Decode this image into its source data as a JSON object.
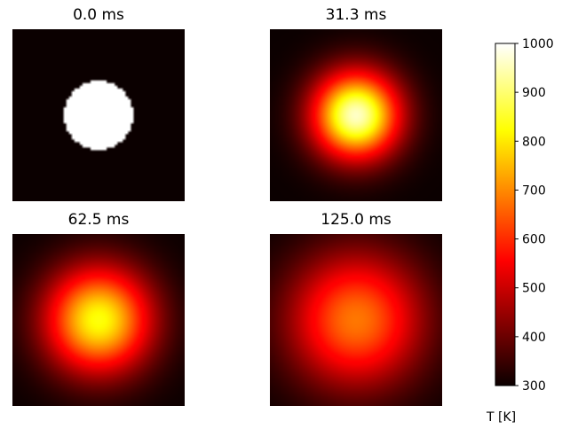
{
  "chart_data": {
    "type": "heatmap",
    "colormap": "hot",
    "color_range": [
      300,
      1000
    ],
    "colorbar": {
      "label": "T [K]",
      "ticks": [
        300,
        400,
        500,
        600,
        700,
        800,
        900,
        1000
      ]
    },
    "panels": [
      {
        "title": "0.0 ms",
        "peak_temperature": 1000,
        "background_temperature": 300,
        "radius_fraction": 0.2,
        "profile": "disk"
      },
      {
        "title": "31.3 ms",
        "peak_temperature": 960,
        "background_temperature": 300,
        "radius_fraction": 0.2,
        "profile": "diffused"
      },
      {
        "title": "62.5 ms",
        "peak_temperature": 830,
        "background_temperature": 300,
        "radius_fraction": 0.2,
        "profile": "diffused"
      },
      {
        "title": "125.0 ms",
        "peak_temperature": 680,
        "background_temperature": 300,
        "radius_fraction": 0.2,
        "profile": "diffused"
      }
    ]
  }
}
